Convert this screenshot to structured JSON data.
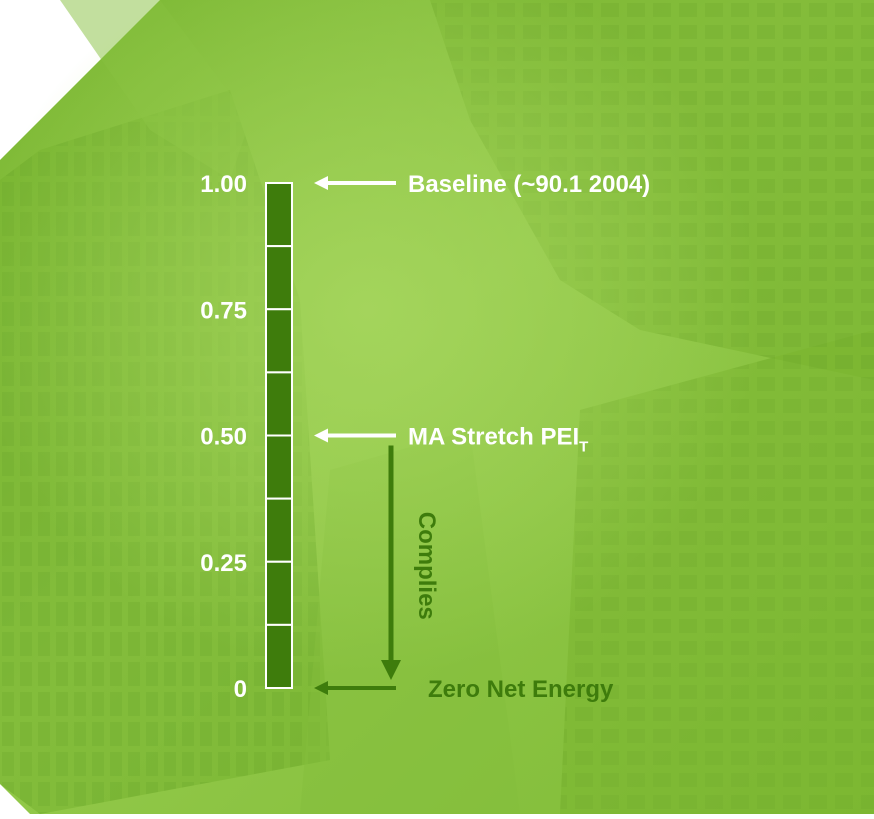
{
  "chart_data": {
    "type": "bar",
    "ylim": [
      0,
      1
    ],
    "scale_segments": 8,
    "ticks": [
      {
        "value": 1.0,
        "label": "1.00"
      },
      {
        "value": 0.75,
        "label": "0.75"
      },
      {
        "value": 0.5,
        "label": "0.50"
      },
      {
        "value": 0.25,
        "label": "0.25"
      },
      {
        "value": 0,
        "label": "0"
      }
    ],
    "annotations": [
      {
        "value": 1.0,
        "text": "Baseline (~90.1 2004)",
        "color": "#ffffff"
      },
      {
        "value": 0.5,
        "text": "MA Stretch PEI",
        "subscript": "T",
        "color": "#ffffff"
      },
      {
        "value": 0,
        "text": "Zero Net Energy",
        "color": "#3e7c0c"
      }
    ],
    "range_arrow": {
      "from": 0.5,
      "to": 0,
      "label": "Complies",
      "color": "#3e7c0c"
    }
  },
  "colors": {
    "background": "#8cc63f",
    "bar_fill": "#3e7c0c",
    "bar_stroke": "#ffffff",
    "tick_label": "#ffffff"
  }
}
